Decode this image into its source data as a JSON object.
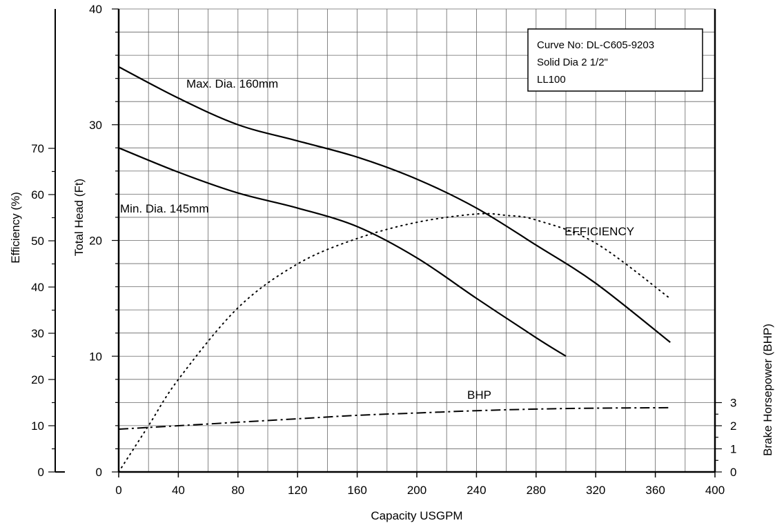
{
  "chart_data": {
    "type": "line",
    "title": "",
    "xlabel": "Capacity USGPM",
    "ylabel_head": "Total Head (Ft)",
    "ylabel_efficiency": "Efficiency (%)",
    "ylabel_bhp": "Brake Horsepower (BHP)",
    "xlim": [
      0,
      400
    ],
    "head_ylim": [
      0,
      40
    ],
    "efficiency_ylim": [
      0,
      70
    ],
    "bhp_ylim": [
      0,
      3
    ],
    "x_ticks": [
      "0",
      "40",
      "80",
      "120",
      "160",
      "200",
      "240",
      "280",
      "320",
      "360",
      "400"
    ],
    "head_ticks": [
      "0",
      "10",
      "20",
      "30",
      "40"
    ],
    "efficiency_ticks": [
      "0",
      "10",
      "20",
      "30",
      "40",
      "50",
      "60",
      "70"
    ],
    "bhp_ticks": [
      "0",
      "1",
      "2",
      "3"
    ],
    "grid": true,
    "series": [
      {
        "name": "Max. Dia. 160mm",
        "axis": "head",
        "style": "solid",
        "x": [
          0,
          40,
          80,
          120,
          160,
          200,
          240,
          280,
          320,
          370
        ],
        "y": [
          35,
          32.3,
          30,
          28.6,
          27.2,
          25.3,
          22.8,
          19.6,
          16.3,
          11.2
        ]
      },
      {
        "name": "Min. Dia. 145mm",
        "axis": "head",
        "style": "solid",
        "x": [
          0,
          40,
          80,
          120,
          160,
          200,
          240,
          280,
          300
        ],
        "y": [
          28,
          25.9,
          24.1,
          22.8,
          21.2,
          18.5,
          15.0,
          11.6,
          10.0
        ]
      },
      {
        "name": "EFFICIENCY",
        "axis": "efficiency",
        "style": "dotted",
        "x": [
          0,
          20,
          40,
          80,
          120,
          160,
          200,
          240,
          260,
          280,
          320,
          370
        ],
        "y": [
          0,
          10,
          20,
          35.5,
          45,
          50.5,
          54,
          55.8,
          55.5,
          54.5,
          49.5,
          37.5
        ]
      },
      {
        "name": "BHP",
        "axis": "bhp",
        "style": "dashdot",
        "x": [
          0,
          40,
          80,
          120,
          160,
          200,
          240,
          280,
          320,
          370
        ],
        "y": [
          1.85,
          2.0,
          2.15,
          2.3,
          2.45,
          2.55,
          2.65,
          2.72,
          2.76,
          2.78
        ]
      }
    ],
    "annotations": [
      {
        "text": "Max. Dia. 160mm",
        "x": 45,
        "y": 33.3,
        "axis": "head"
      },
      {
        "text": "Min. Dia. 145mm",
        "x": 0,
        "y": 22.5,
        "axis": "head"
      },
      {
        "text": "EFFICIENCY",
        "x": 150,
        "y": 21,
        "axis": "head",
        "anchor_data_x": 300
      },
      {
        "text": "BHP",
        "x": 117,
        "y": 6.8,
        "axis": "head",
        "anchor_data_x": 117
      }
    ],
    "legend_box": {
      "placement": "top-right",
      "lines": [
        "Curve No: DL-C605-9203",
        "Solid Dia 2 1/2\"",
        "LL100"
      ]
    }
  }
}
